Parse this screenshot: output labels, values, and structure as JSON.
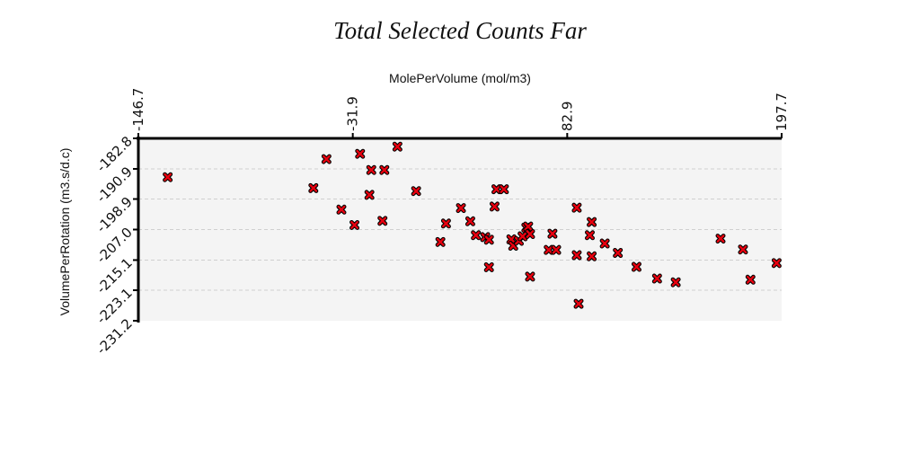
{
  "chart_data": {
    "type": "scatter",
    "title": "Total Selected Counts Far",
    "xlabel": "MolePerVolume (mol/m3)",
    "ylabel": "VolumePerRotation (m3.s/d.c)",
    "xlim": [
      -146.7,
      197.7
    ],
    "ylim": [
      -231.2,
      -182.8
    ],
    "x_ticks": [
      "-146.7",
      "-31.9",
      "82.9",
      "197.7"
    ],
    "y_ticks": [
      "-182.8",
      "-190.9",
      "-198.9",
      "-207.0",
      "-215.1",
      "-223.1",
      "-231.2"
    ],
    "x_axis_position": "top",
    "grid": "horizontal dashed",
    "marker": "x",
    "colors": {
      "marker": "#e8000f",
      "marker_edge": "#000000",
      "plot_bg": "#f4f4f4"
    },
    "series": [
      {
        "points": [
          [
            -131,
            -193.1
          ],
          [
            -46,
            -188.3
          ],
          [
            -38,
            -201.7
          ],
          [
            -53,
            -196.0
          ],
          [
            -31,
            -205.8
          ],
          [
            -28,
            -186.9
          ],
          [
            -22,
            -191.2
          ],
          [
            -15,
            -191.2
          ],
          [
            -8,
            -185.0
          ],
          [
            -23,
            -197.8
          ],
          [
            -16,
            -204.7
          ],
          [
            2,
            -196.8
          ],
          [
            15,
            -210.3
          ],
          [
            18,
            -205.4
          ],
          [
            26,
            -201.3
          ],
          [
            31,
            -204.8
          ],
          [
            34,
            -208.5
          ],
          [
            39,
            -209.0
          ],
          [
            41,
            -217.0
          ],
          [
            41,
            -209.7
          ],
          [
            45,
            -196.3
          ],
          [
            44,
            -200.9
          ],
          [
            49,
            -196.3
          ],
          [
            53,
            -209.6
          ],
          [
            54,
            -211.3
          ],
          [
            57,
            -210.0
          ],
          [
            59,
            -208.8
          ],
          [
            61,
            -206.5
          ],
          [
            62,
            -206.2
          ],
          [
            63,
            -219.5
          ],
          [
            63,
            -208.2
          ],
          [
            73,
            -212.4
          ],
          [
            75,
            -208.1
          ],
          [
            77,
            -212.4
          ],
          [
            88,
            -201.2
          ],
          [
            88,
            -213.8
          ],
          [
            89,
            -226.7
          ],
          [
            96,
            -205.0
          ],
          [
            96,
            -214.1
          ],
          [
            95,
            -208.5
          ],
          [
            103,
            -210.7
          ],
          [
            110,
            -213.2
          ],
          [
            120,
            -216.9
          ],
          [
            131,
            -220.0
          ],
          [
            141,
            -221.0
          ],
          [
            165,
            -209.4
          ],
          [
            177,
            -212.3
          ],
          [
            181,
            -220.3
          ],
          [
            195,
            -215.9
          ]
        ]
      }
    ]
  }
}
